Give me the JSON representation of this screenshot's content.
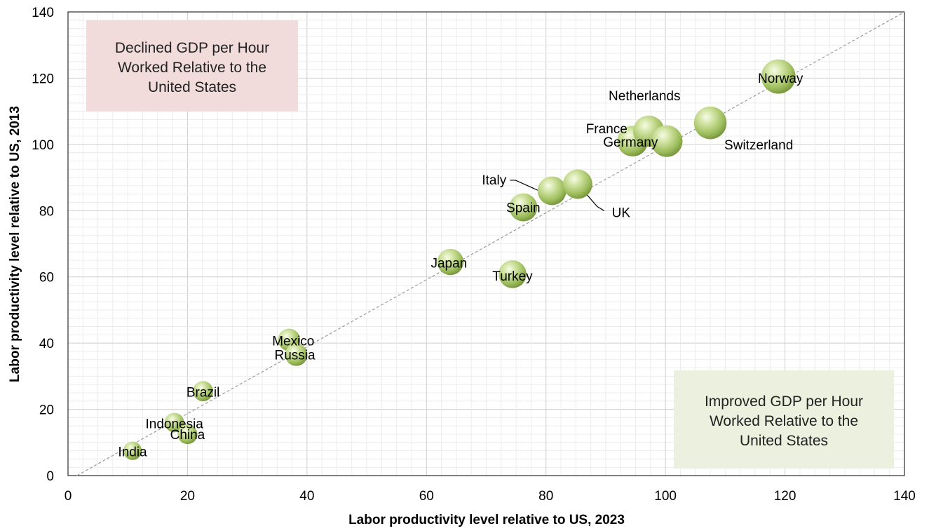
{
  "chart_data": {
    "type": "scatter",
    "title": "",
    "xlabel": "Labor productivity level relative to US, 2023",
    "ylabel": "Labor productivity level relative to US, 2013",
    "xlim": [
      0,
      140
    ],
    "ylim": [
      0,
      140
    ],
    "x_ticks": [
      "0",
      "20",
      "40",
      "60",
      "80",
      "100",
      "120",
      "140"
    ],
    "y_ticks": [
      "0",
      "20",
      "40",
      "60",
      "80",
      "100",
      "120",
      "140"
    ],
    "grid": true,
    "reference_line": "y = x",
    "marker_color": "#a9c86a",
    "points": [
      {
        "label": "Norway",
        "x": 118.9,
        "y": 120.5
      },
      {
        "label": "Switzerland",
        "x": 107.5,
        "y": 106.5
      },
      {
        "label": "Netherlands",
        "x": 97.2,
        "y": 104.0
      },
      {
        "label": "France",
        "x": 100.2,
        "y": 101.0
      },
      {
        "label": "Germany",
        "x": 94.5,
        "y": 101.0
      },
      {
        "label": "UK",
        "x": 85.3,
        "y": 88.0
      },
      {
        "label": "Italy",
        "x": 81.0,
        "y": 86.0
      },
      {
        "label": "Spain",
        "x": 76.2,
        "y": 81.0
      },
      {
        "label": "Japan",
        "x": 64.0,
        "y": 64.5
      },
      {
        "label": "Turkey",
        "x": 74.4,
        "y": 60.8
      },
      {
        "label": "Mexico",
        "x": 37.0,
        "y": 41.0
      },
      {
        "label": "Russia",
        "x": 38.2,
        "y": 36.5
      },
      {
        "label": "Brazil",
        "x": 22.6,
        "y": 25.5
      },
      {
        "label": "Indonesia",
        "x": 17.8,
        "y": 16.0
      },
      {
        "label": "China",
        "x": 20.0,
        "y": 12.5
      },
      {
        "label": "India",
        "x": 10.8,
        "y": 7.5
      }
    ],
    "annotations": [
      {
        "id": "declined",
        "lines": [
          "Declined GDP per Hour",
          "Worked Relative to the",
          "United States"
        ],
        "color": "#f2dcdb"
      },
      {
        "id": "improved",
        "lines": [
          "Improved GDP per Hour",
          "Worked Relative to the",
          "United States"
        ],
        "color": "#ebf1de"
      }
    ]
  }
}
